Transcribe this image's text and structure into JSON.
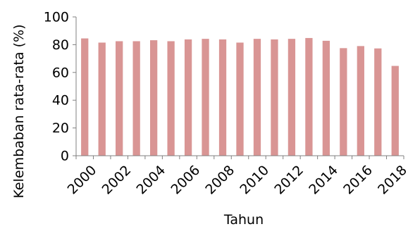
{
  "chart_data": {
    "type": "bar",
    "title": "",
    "xlabel": "Tahun",
    "ylabel": "Kelembaban rata-rata (%)",
    "ylim": [
      0,
      100
    ],
    "yticks": [
      0,
      20,
      40,
      60,
      80,
      100
    ],
    "categories": [
      "2000",
      "2001",
      "2002",
      "2003",
      "2004",
      "2005",
      "2006",
      "2007",
      "2008",
      "2009",
      "2010",
      "2011",
      "2012",
      "2013",
      "2014",
      "2015",
      "2016",
      "2017",
      "2018"
    ],
    "xtick_labels": [
      "2000",
      "2002",
      "2004",
      "2006",
      "2008",
      "2010",
      "2012",
      "2014",
      "2016",
      "2018"
    ],
    "values": [
      84.5,
      81.5,
      82.5,
      82.5,
      83.2,
      82.5,
      83.8,
      84.2,
      83.8,
      81.5,
      84.2,
      83.8,
      84.2,
      84.8,
      82.8,
      77.5,
      79.0,
      77.3,
      64.7
    ],
    "bar_color": "#d99594",
    "axis_color": "#808080",
    "grid": false,
    "legend": "none"
  }
}
